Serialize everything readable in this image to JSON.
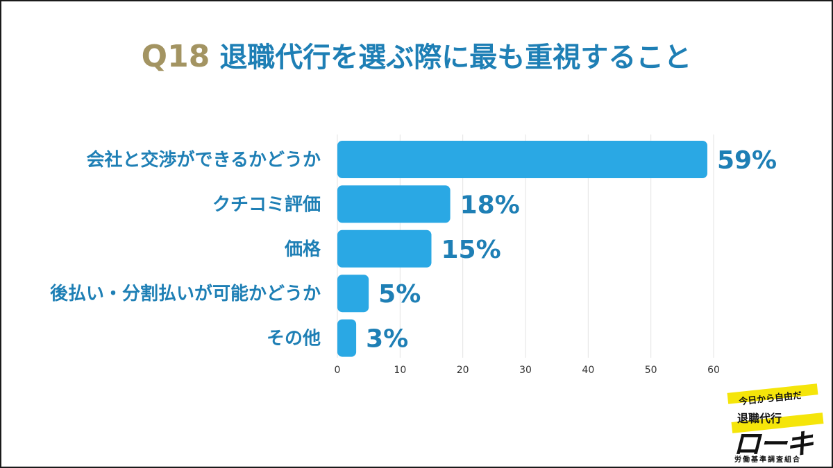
{
  "title": {
    "prefix": "Q18",
    "text": "退職代行を選ぶ際に最も重視すること"
  },
  "chart_data": {
    "type": "bar",
    "orientation": "horizontal",
    "categories": [
      "会社と交渉ができるかどうか",
      "クチコミ評価",
      "価格",
      "後払い・分割払いが可能かどうか",
      "その他"
    ],
    "values": [
      59,
      18,
      15,
      5,
      3
    ],
    "value_labels": [
      "59%",
      "18%",
      "15%",
      "5%",
      "3%"
    ],
    "x_ticks": [
      "0",
      "10",
      "20",
      "30",
      "40",
      "50",
      "60"
    ],
    "xlim": [
      0,
      60
    ],
    "grid": true,
    "bar_color": "#2aa8e4",
    "label_color": "#1e7fb5"
  },
  "logo": {
    "tagline": "今日から自由だ",
    "service": "退職代行",
    "brand": "ローキ",
    "org": "労働基準調査組合"
  },
  "colors": {
    "accent_gold": "#a39462",
    "accent_blue": "#1e7fb5"
  }
}
